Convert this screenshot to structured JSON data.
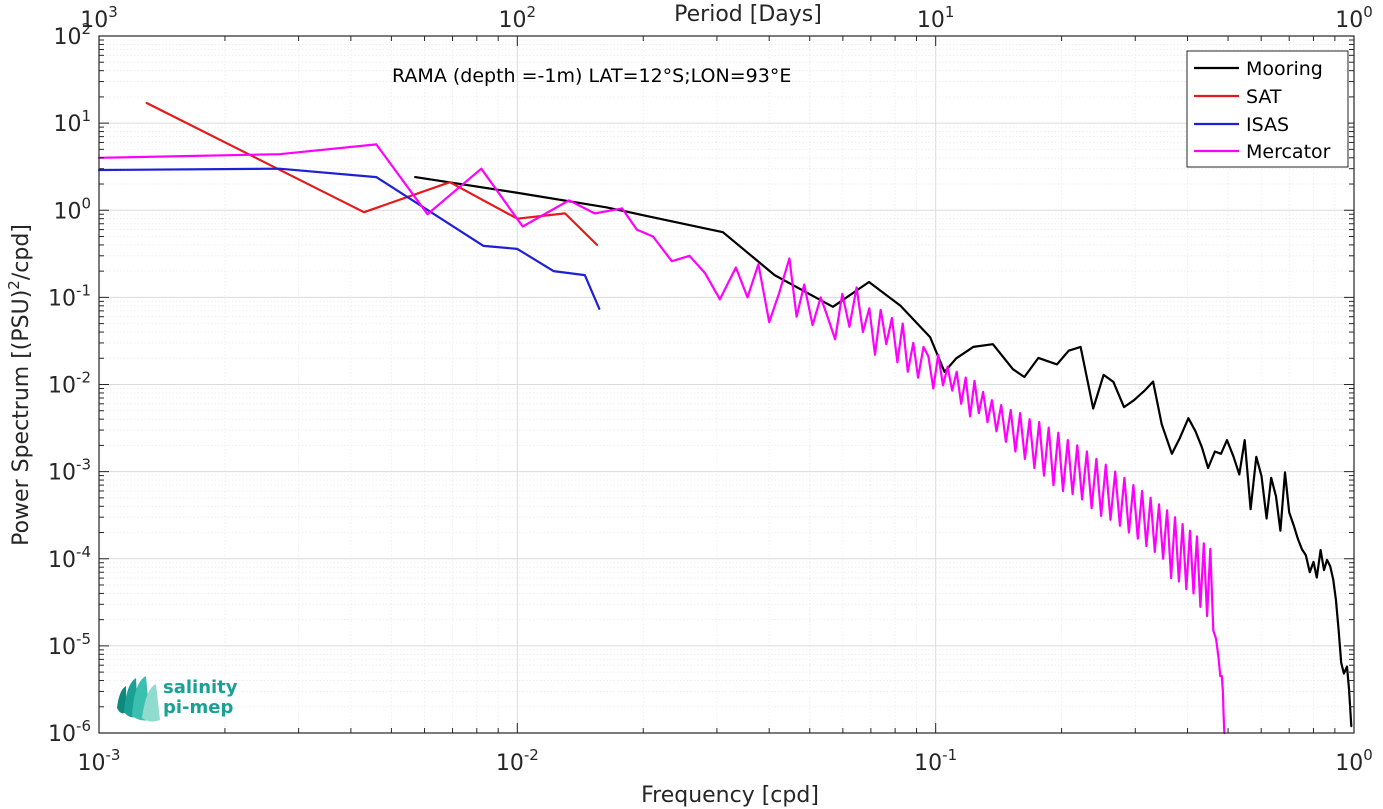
{
  "chart_data": {
    "type": "line",
    "xscale": "log",
    "yscale": "log",
    "xlim": [
      0.001,
      1
    ],
    "ylim": [
      1e-06,
      100
    ],
    "grid": true,
    "xlabel": "Frequency [cpd]",
    "ylabel": "Power Spectrum [(PSU)²/cpd]",
    "ylabel_parts": {
      "pre": "Power Spectrum [(PSU)",
      "sup": "2",
      "post": "/cpd]"
    },
    "top_xlabel": "Period [Days]",
    "annotation": "RAMA (depth =-1m) LAT=12°S;LON=93°E",
    "legend_position": "top-right",
    "x_ticks": [
      {
        "value": 0.001,
        "base": "10",
        "exp": "-3"
      },
      {
        "value": 0.01,
        "base": "10",
        "exp": "-2"
      },
      {
        "value": 0.1,
        "base": "10",
        "exp": "-1"
      },
      {
        "value": 1,
        "base": "10",
        "exp": "0"
      }
    ],
    "top_ticks": [
      {
        "freq": 0.001,
        "base": "10",
        "exp": "3"
      },
      {
        "freq": 0.01,
        "base": "10",
        "exp": "2"
      },
      {
        "freq": 0.1,
        "base": "10",
        "exp": "1"
      },
      {
        "freq": 1,
        "base": "10",
        "exp": "0"
      }
    ],
    "y_ticks": [
      {
        "value": 100,
        "base": "10",
        "exp": "2"
      },
      {
        "value": 10,
        "base": "10",
        "exp": "1"
      },
      {
        "value": 1,
        "base": "10",
        "exp": "0"
      },
      {
        "value": 0.1,
        "base": "10",
        "exp": "-1"
      },
      {
        "value": 0.01,
        "base": "10",
        "exp": "-2"
      },
      {
        "value": 0.001,
        "base": "10",
        "exp": "-3"
      },
      {
        "value": 0.0001,
        "base": "10",
        "exp": "-4"
      },
      {
        "value": 1e-05,
        "base": "10",
        "exp": "-5"
      },
      {
        "value": 1e-06,
        "base": "10",
        "exp": "-6"
      }
    ],
    "series": [
      {
        "name": "Mooring",
        "color": "#000000",
        "x": [
          0.0057,
          0.0099,
          0.0163,
          0.031,
          0.0412,
          0.0568,
          0.0693,
          0.0824,
          0.097,
          0.105,
          0.112,
          0.123,
          0.137,
          0.153,
          0.163,
          0.176,
          0.195,
          0.208,
          0.222,
          0.238,
          0.252,
          0.266,
          0.282,
          0.298,
          0.315,
          0.331,
          0.347,
          0.367,
          0.383,
          0.402,
          0.418,
          0.433,
          0.448,
          0.465,
          0.481,
          0.497,
          0.515,
          0.532,
          0.548,
          0.566,
          0.584,
          0.601,
          0.618,
          0.634,
          0.651,
          0.667,
          0.684,
          0.7,
          0.718,
          0.734,
          0.751,
          0.767,
          0.784,
          0.8,
          0.815,
          0.832,
          0.848,
          0.862,
          0.877,
          0.892,
          0.905,
          0.918,
          0.932,
          0.946,
          0.962,
          0.973,
          0.985
        ],
        "y": [
          2.4,
          1.6,
          1.08,
          0.56,
          0.18,
          0.078,
          0.15,
          0.08,
          0.035,
          0.014,
          0.02,
          0.027,
          0.029,
          0.015,
          0.0122,
          0.0202,
          0.017,
          0.0244,
          0.027,
          0.0053,
          0.0129,
          0.0107,
          0.0055,
          0.0066,
          0.0084,
          0.0108,
          0.0035,
          0.0016,
          0.0024,
          0.0041,
          0.0029,
          0.0019,
          0.0011,
          0.0017,
          0.0016,
          0.0023,
          0.0015,
          0.00093,
          0.0023,
          0.00037,
          0.00148,
          0.00089,
          0.00029,
          0.00085,
          0.00052,
          0.00021,
          0.00098,
          0.00034,
          0.00024,
          0.00017,
          0.000128,
          0.00011,
          7e-05,
          9.2e-05,
          6.1e-05,
          0.000126,
          7.4e-05,
          9.7e-05,
          8.2e-05,
          5.8e-05,
          3.4e-05,
          1.58e-05,
          6.4e-06,
          4.8e-06,
          5.8e-06,
          3.2e-06,
          1.2e-06
        ]
      },
      {
        "name": "SAT",
        "color": "#e41a1c",
        "x": [
          0.0013,
          0.0043,
          0.0069,
          0.01,
          0.013,
          0.0155
        ],
        "y": [
          17.0,
          0.95,
          2.1,
          0.8,
          0.92,
          0.4
        ]
      },
      {
        "name": "ISAS",
        "color": "#1f1fd6",
        "x": [
          0.001,
          0.0027,
          0.0046,
          0.0083,
          0.01,
          0.0122,
          0.0145,
          0.0157
        ],
        "y": [
          2.9,
          3.0,
          2.4,
          0.39,
          0.36,
          0.2,
          0.18,
          0.074
        ]
      },
      {
        "name": "Mercator",
        "color": "#ff00ff",
        "x": [
          0.001,
          0.0027,
          0.0046,
          0.0061,
          0.0082,
          0.0103,
          0.0133,
          0.0153,
          0.0178,
          0.0193,
          0.0211,
          0.0234,
          0.0258,
          0.0281,
          0.0305,
          0.0333,
          0.0355,
          0.0377,
          0.04,
          0.0422,
          0.0447,
          0.0465,
          0.0485,
          0.0508,
          0.0531,
          0.0553,
          0.0575,
          0.0598,
          0.0622,
          0.0647,
          0.067,
          0.0694,
          0.0716,
          0.0739,
          0.0762,
          0.0786,
          0.081,
          0.0834,
          0.0858,
          0.0884,
          0.0908,
          0.0935,
          0.0961,
          0.0987,
          0.1014,
          0.1041,
          0.1068,
          0.1095,
          0.1123,
          0.1151,
          0.118,
          0.1209,
          0.1238,
          0.1268,
          0.1298,
          0.133,
          0.1363,
          0.1398,
          0.1434,
          0.1472,
          0.1511,
          0.1551,
          0.1592,
          0.1634,
          0.1677,
          0.1722,
          0.1768,
          0.1815,
          0.1863,
          0.1913,
          0.1964,
          0.2016,
          0.207,
          0.2125,
          0.2181,
          0.2239,
          0.2299,
          0.2359,
          0.2422,
          0.2486,
          0.2551,
          0.2618,
          0.2686,
          0.2756,
          0.2826,
          0.2897,
          0.2969,
          0.3042,
          0.3115,
          0.319,
          0.3265,
          0.3341,
          0.3418,
          0.3496,
          0.3575,
          0.3654,
          0.3734,
          0.3814,
          0.3894,
          0.3974,
          0.4054,
          0.4134,
          0.4214,
          0.4294,
          0.4374,
          0.4454,
          0.4534,
          0.461,
          0.468,
          0.474,
          0.479,
          0.483,
          0.486,
          0.488,
          0.49
        ],
        "y": [
          4.0,
          4.4,
          5.7,
          0.9,
          3.0,
          0.65,
          1.3,
          0.92,
          1.05,
          0.6,
          0.5,
          0.26,
          0.3,
          0.19,
          0.095,
          0.22,
          0.1,
          0.24,
          0.052,
          0.11,
          0.28,
          0.06,
          0.14,
          0.048,
          0.1,
          0.058,
          0.033,
          0.11,
          0.046,
          0.13,
          0.04,
          0.075,
          0.022,
          0.072,
          0.029,
          0.058,
          0.018,
          0.05,
          0.014,
          0.03,
          0.012,
          0.027,
          0.021,
          0.009,
          0.022,
          0.0098,
          0.016,
          0.0085,
          0.014,
          0.006,
          0.012,
          0.0043,
          0.011,
          0.0047,
          0.0082,
          0.0037,
          0.0066,
          0.0029,
          0.0058,
          0.0022,
          0.0051,
          0.0017,
          0.0047,
          0.0014,
          0.004,
          0.0011,
          0.0037,
          0.0009,
          0.0032,
          0.0007,
          0.0028,
          0.0006,
          0.0023,
          0.00055,
          0.002,
          0.00048,
          0.0017,
          0.00038,
          0.0014,
          0.00031,
          0.0012,
          0.00028,
          0.001,
          0.00024,
          0.00085,
          0.0002,
          0.0007,
          0.00017,
          0.0006,
          0.00014,
          0.0005,
          0.00012,
          0.00042,
          0.0001,
          0.00036,
          6e-05,
          0.0003,
          5.5e-05,
          0.00025,
          4.5e-05,
          0.00021,
          4e-05,
          0.00018,
          2.8e-05,
          0.00015,
          2.2e-05,
          0.00013,
          1.5e-05,
          1.2e-05,
          7.5e-06,
          4.5e-06,
          4.5e-06,
          3e-06,
          1.5e-06,
          1e-06
        ]
      }
    ]
  },
  "logo": {
    "line1": "salinity",
    "line2": "pi-mep",
    "color": "#1aa094"
  }
}
